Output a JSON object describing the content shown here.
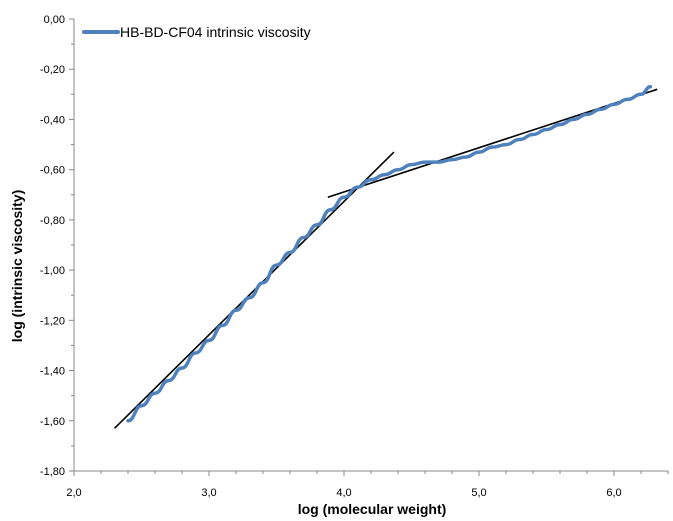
{
  "chart_data": {
    "type": "line",
    "xlabel": "log (molecular weight)",
    "ylabel": "log (intrinsic viscosity)",
    "xlim": [
      2.0,
      6.4
    ],
    "ylim": [
      -1.8,
      0.0
    ],
    "x_ticks": [
      "2,0",
      "3,0",
      "4,0",
      "5,0",
      "6,0"
    ],
    "x_tick_values": [
      2.0,
      3.0,
      4.0,
      5.0,
      6.0
    ],
    "y_ticks": [
      "0,00",
      "-0,20",
      "-0,40",
      "-0,60",
      "-0,80",
      "-1,00",
      "-1,20",
      "-1,40",
      "-1,60",
      "-1,80"
    ],
    "y_tick_values": [
      0.0,
      -0.2,
      -0.4,
      -0.6,
      -0.8,
      -1.0,
      -1.2,
      -1.4,
      -1.6,
      -1.8
    ],
    "grid": false,
    "legend_position": "top-left",
    "series": [
      {
        "name": "HB-BD-CF04 intrinsic viscosity",
        "color": "#4f81bd",
        "x": [
          2.4,
          2.5,
          2.6,
          2.7,
          2.8,
          2.9,
          3.0,
          3.1,
          3.2,
          3.3,
          3.4,
          3.5,
          3.6,
          3.7,
          3.8,
          3.9,
          4.0,
          4.1,
          4.2,
          4.3,
          4.4,
          4.5,
          4.6,
          4.7,
          4.8,
          4.9,
          5.0,
          5.1,
          5.2,
          5.3,
          5.4,
          5.5,
          5.6,
          5.7,
          5.8,
          5.9,
          6.0,
          6.1,
          6.2,
          6.27
        ],
        "values": [
          -1.6,
          -1.54,
          -1.49,
          -1.44,
          -1.39,
          -1.33,
          -1.28,
          -1.22,
          -1.16,
          -1.11,
          -1.05,
          -0.98,
          -0.93,
          -0.87,
          -0.82,
          -0.76,
          -0.71,
          -0.67,
          -0.64,
          -0.62,
          -0.6,
          -0.58,
          -0.57,
          -0.57,
          -0.56,
          -0.55,
          -0.53,
          -0.51,
          -0.5,
          -0.48,
          -0.46,
          -0.44,
          -0.42,
          -0.4,
          -0.38,
          -0.36,
          -0.34,
          -0.32,
          -0.3,
          -0.27
        ]
      }
    ],
    "fit_lines": [
      {
        "color": "#000000",
        "x": [
          2.3,
          4.37
        ],
        "y": [
          -1.63,
          -0.53
        ]
      },
      {
        "color": "#000000",
        "x": [
          3.88,
          6.32
        ],
        "y": [
          -0.71,
          -0.28
        ]
      }
    ]
  }
}
